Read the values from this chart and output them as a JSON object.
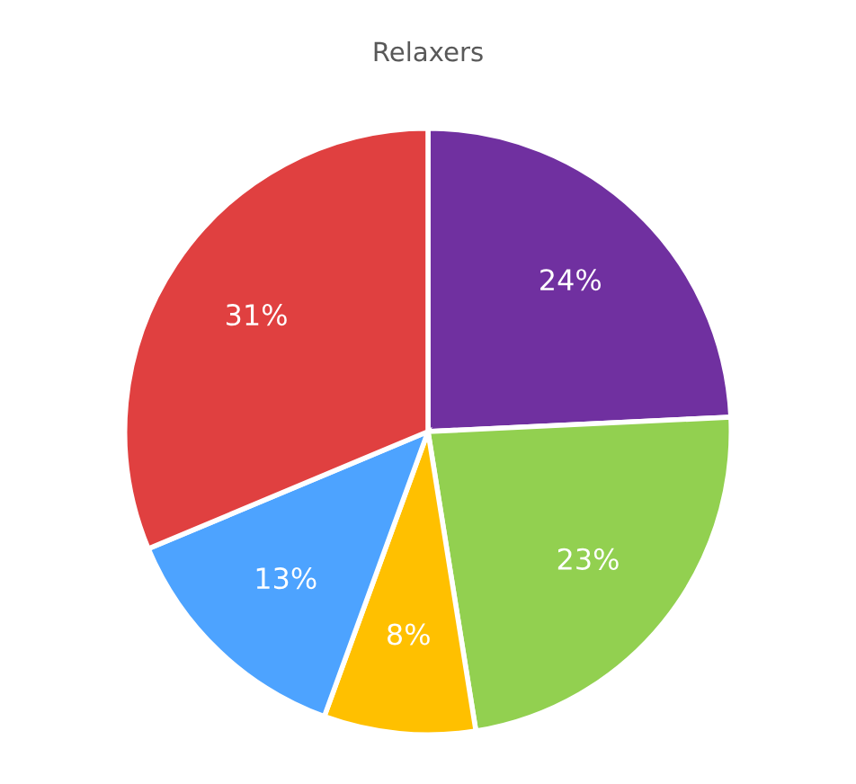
{
  "chart_data": {
    "type": "pie",
    "title": "Relaxers",
    "categories": [
      null,
      null,
      null,
      null,
      null
    ],
    "values": [
      24,
      23,
      8,
      13,
      31
    ],
    "colors": [
      "#7030a0",
      "#92d050",
      "#ffc000",
      "#4da3ff",
      "#e04040"
    ],
    "value_labels": [
      "24%",
      "23%",
      "8%",
      "13%",
      "31%"
    ]
  }
}
